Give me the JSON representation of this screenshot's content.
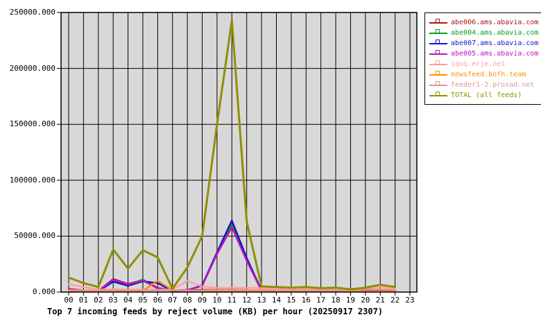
{
  "window": {
    "background": "#ffffff"
  },
  "chart_data": {
    "type": "line",
    "title": "Top 7 incoming feeds by reject volume (KB) per hour (20250917 2307)",
    "xlabel": "",
    "ylabel": "",
    "xlim": [
      0,
      23
    ],
    "ylim": [
      0,
      250000
    ],
    "grid": true,
    "plot_bg_color": "#d8d8d8",
    "grid_color": "#000000",
    "border_color": "#000000",
    "legend_position": "outside-top-right",
    "x_tick_labels": [
      "00",
      "01",
      "02",
      "03",
      "04",
      "05",
      "06",
      "07",
      "08",
      "09",
      "10",
      "11",
      "12",
      "13",
      "14",
      "15",
      "16",
      "17",
      "18",
      "19",
      "20",
      "21",
      "22",
      "23"
    ],
    "y_tick_labels": [
      "0.000",
      "50000.000",
      "100000.000",
      "150000.000",
      "200000.000",
      "250000.000"
    ],
    "y_tick_values": [
      0,
      50000,
      100000,
      150000,
      200000,
      250000
    ],
    "x_hours_with_data": 23,
    "series": [
      {
        "name": "abe006.ams.abavia.com",
        "color": "#b01010",
        "values": [
          2800,
          1500,
          1000,
          11800,
          7200,
          10800,
          3800,
          1400,
          1800,
          2000,
          2000,
          2000,
          1800,
          1000,
          900,
          900,
          900,
          900,
          900,
          800,
          900,
          1000,
          900
        ]
      },
      {
        "name": "abe004.ams.abavia.com",
        "color": "#00a018",
        "values": [
          2000,
          900,
          700,
          10200,
          6200,
          11200,
          3000,
          900,
          1600,
          5800,
          34500,
          61000,
          29000,
          1300,
          800,
          800,
          800,
          800,
          800,
          700,
          800,
          900,
          800
        ]
      },
      {
        "name": "abe007.ams.abavia.com",
        "color": "#1414cc",
        "values": [
          1500,
          800,
          700,
          9300,
          5600,
          9600,
          8000,
          1000,
          1500,
          6200,
          35500,
          64000,
          30500,
          1500,
          900,
          900,
          900,
          900,
          900,
          800,
          900,
          1000,
          900
        ]
      },
      {
        "name": "abe005.ams.abavia.com",
        "color": "#c014c0",
        "values": [
          3000,
          1200,
          900,
          11200,
          6800,
          10200,
          3500,
          1200,
          2000,
          5500,
          34000,
          58000,
          28000,
          1200,
          1000,
          1000,
          1000,
          1000,
          1000,
          900,
          1000,
          1100,
          1000
        ]
      },
      {
        "name": "iqoq.erje.net",
        "color": "#ff9e9e",
        "values": [
          7000,
          4500,
          2200,
          2500,
          2000,
          2200,
          2000,
          2500,
          10000,
          5000,
          3800,
          3800,
          3800,
          3500,
          2800,
          2500,
          2800,
          2500,
          2200,
          2000,
          3500,
          5000,
          3000
        ]
      },
      {
        "name": "newsfeed.bofh.team",
        "color": "#ff8c00",
        "values": [
          600,
          600,
          600,
          600,
          600,
          1000,
          10200,
          1800,
          700,
          700,
          700,
          700,
          700,
          700,
          700,
          700,
          700,
          700,
          700,
          700,
          700,
          700,
          700
        ]
      },
      {
        "name": "feeder1-2.proxad.net",
        "color": "#e09494",
        "values": [
          1800,
          1500,
          1500,
          1500,
          1500,
          1500,
          1500,
          1500,
          1500,
          1500,
          1800,
          1800,
          1800,
          1800,
          1500,
          1500,
          1500,
          1500,
          1500,
          1500,
          2500,
          2500,
          2000
        ]
      },
      {
        "name": "TOTAL (all feeds)",
        "color": "#8f8f00",
        "values": [
          13000,
          8000,
          4500,
          38000,
          21000,
          37500,
          31000,
          3000,
          22000,
          50000,
          150000,
          243000,
          63000,
          5000,
          4500,
          4000,
          4500,
          3500,
          4000,
          2500,
          4000,
          6500,
          4500
        ]
      }
    ]
  }
}
